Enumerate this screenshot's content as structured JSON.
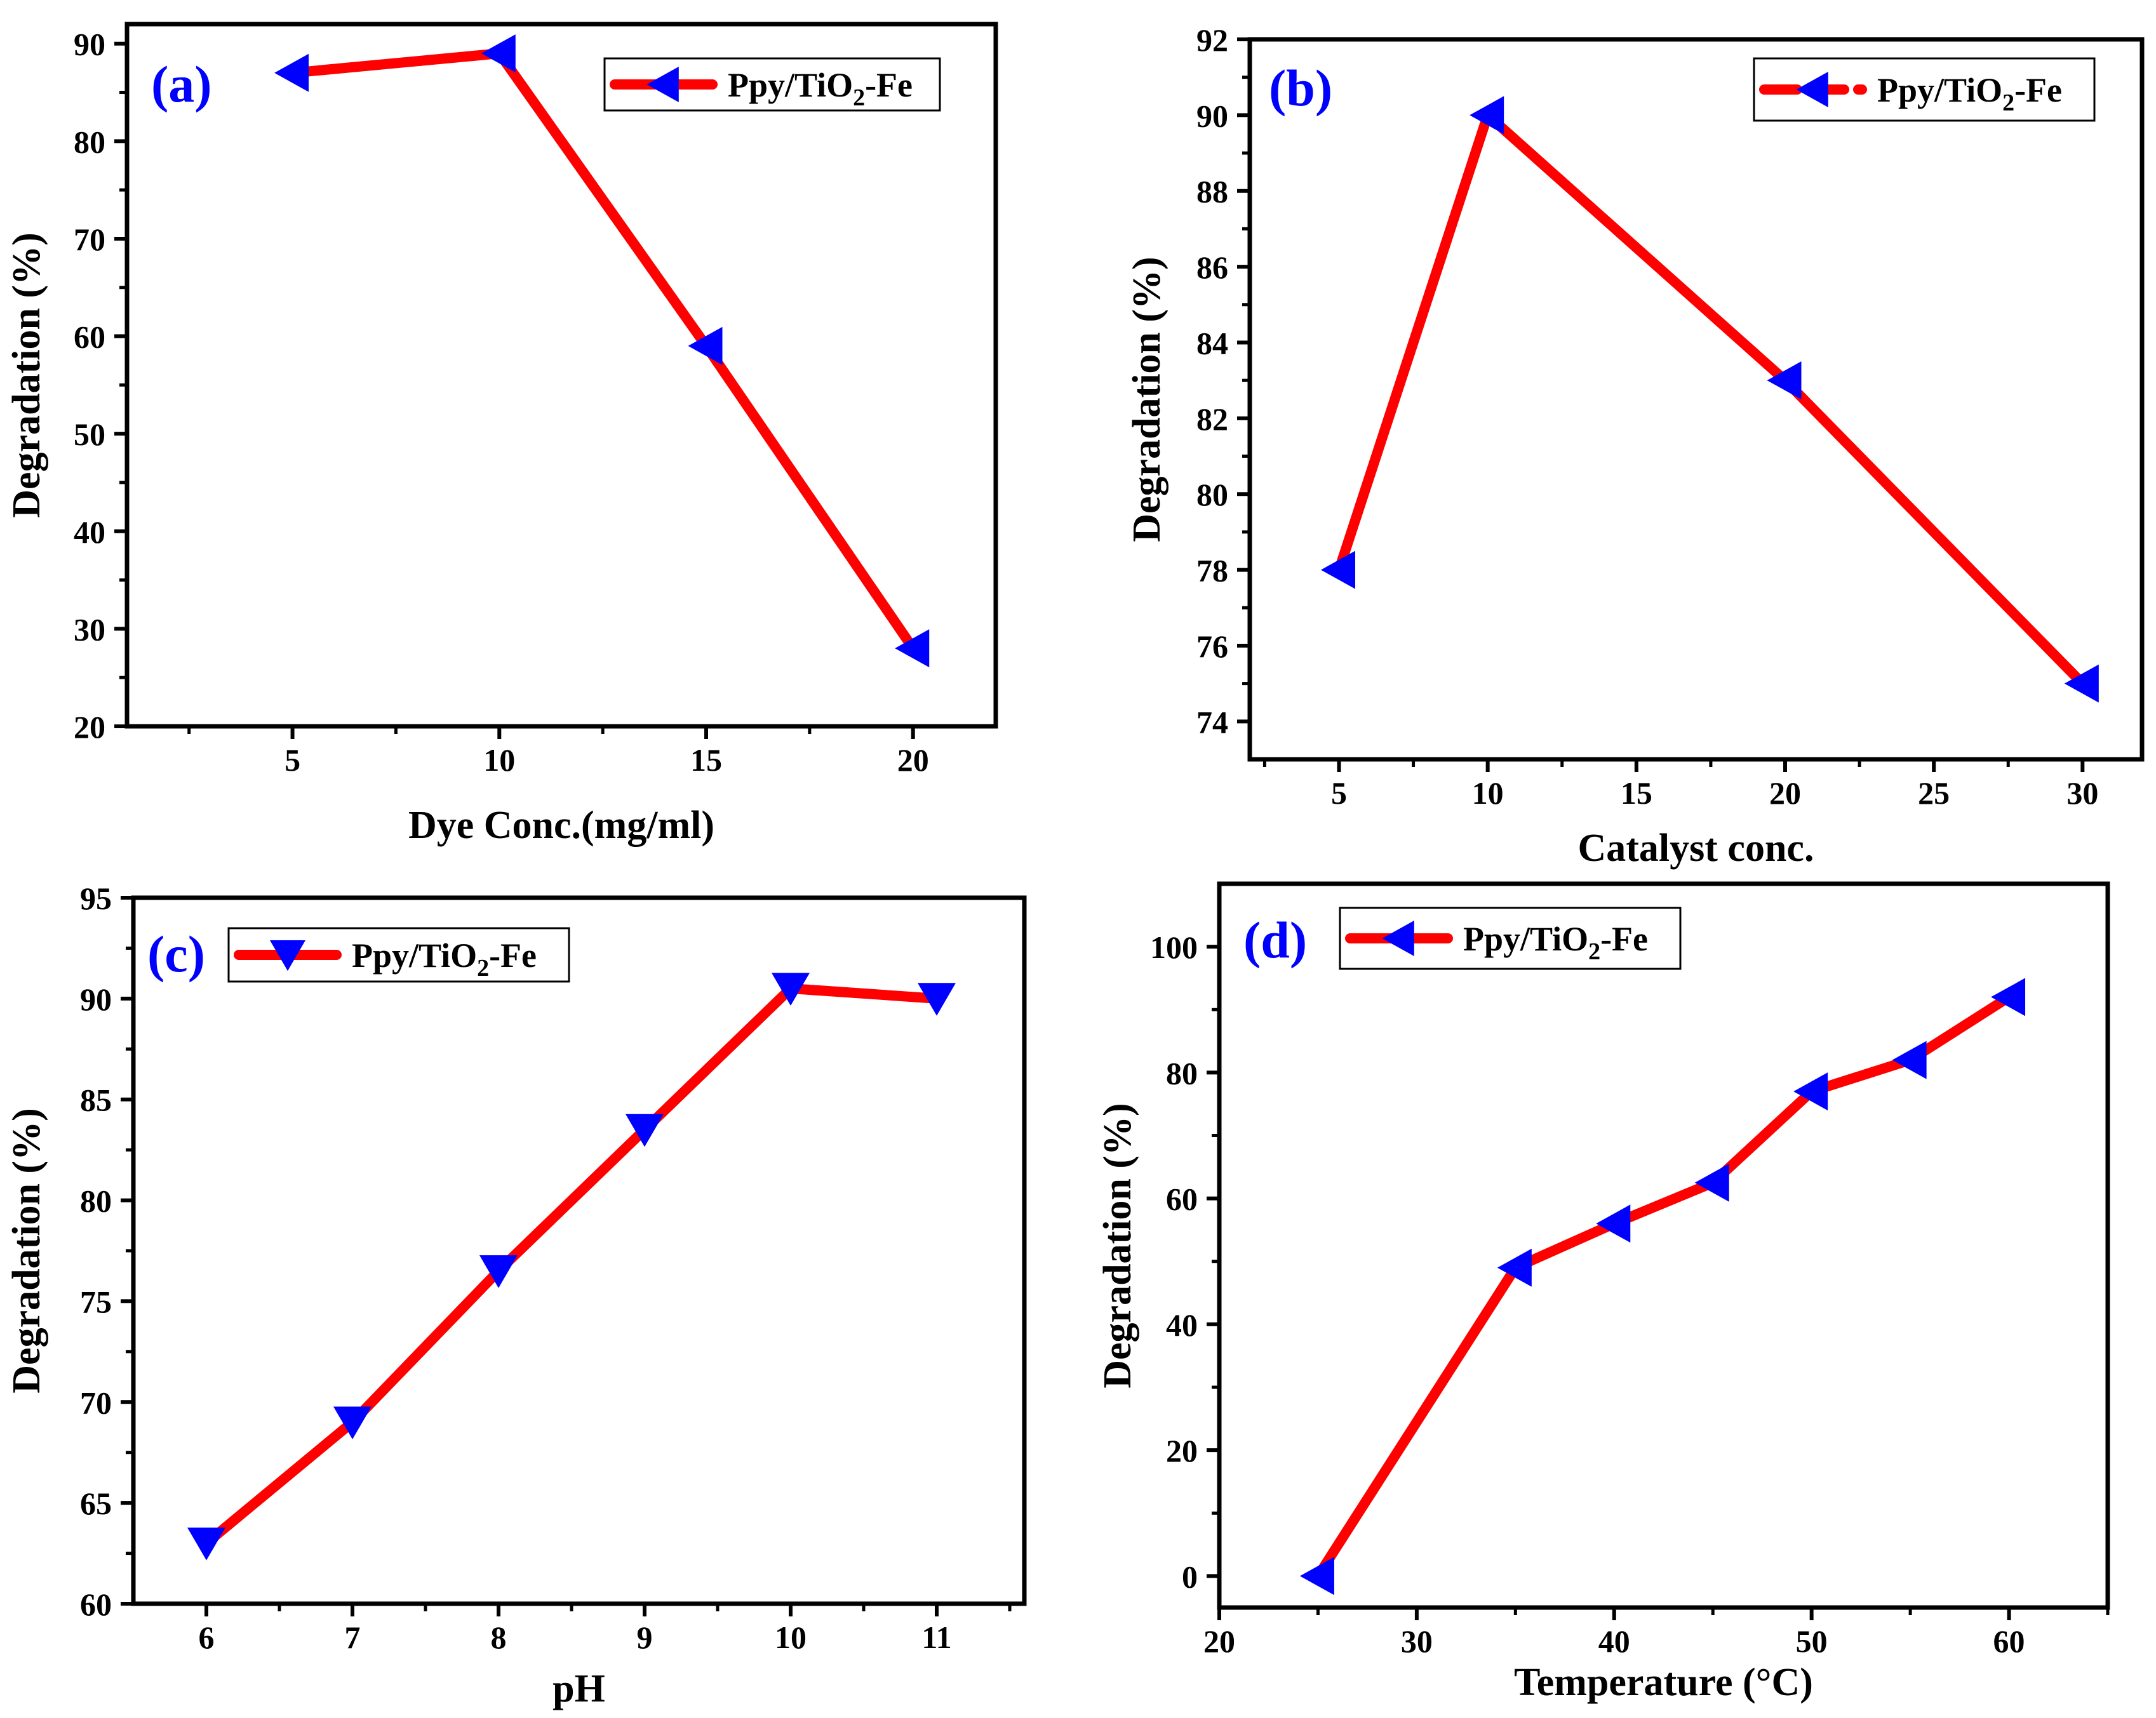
{
  "chart_data": [
    {
      "panel": "a",
      "panel_label": "(a)",
      "type": "line",
      "xlabel": "Dye Conc.(mg/ml)",
      "ylabel": "Degradation (%)",
      "xlim": [
        1,
        22
      ],
      "ylim": [
        20,
        92
      ],
      "xticks": [
        5,
        10,
        15,
        20
      ],
      "yticks": [
        20,
        30,
        40,
        50,
        60,
        70,
        80,
        90
      ],
      "line_style": "solid",
      "legend_position": "top-right",
      "series": [
        {
          "name": "Ppy/TiO2-Fe",
          "marker": "left-triangle",
          "x": [
            5,
            10,
            15,
            20
          ],
          "y": [
            87,
            89,
            59,
            28
          ]
        }
      ]
    },
    {
      "panel": "b",
      "panel_label": "(b)",
      "type": "line",
      "xlabel": "Catalyst conc.",
      "ylabel": "Degradation (%)",
      "xlim": [
        2,
        32
      ],
      "ylim": [
        73,
        92
      ],
      "xticks": [
        5,
        10,
        15,
        20,
        25,
        30
      ],
      "yticks": [
        74,
        76,
        78,
        80,
        82,
        84,
        86,
        88,
        90,
        92
      ],
      "line_style": "dashed",
      "legend_position": "top-right",
      "series": [
        {
          "name": "Ppy/TiO2-Fe",
          "marker": "left-triangle",
          "x": [
            5,
            10,
            20,
            30
          ],
          "y": [
            78,
            90,
            83,
            75
          ]
        }
      ]
    },
    {
      "panel": "c",
      "panel_label": "(c)",
      "type": "line",
      "xlabel": "pH",
      "ylabel": "Degradation (%)",
      "xlim": [
        5.5,
        11.6
      ],
      "ylim": [
        60,
        95
      ],
      "xticks": [
        6,
        7,
        8,
        9,
        10,
        11
      ],
      "yticks": [
        60,
        65,
        70,
        75,
        80,
        85,
        90,
        95
      ],
      "line_style": "solid",
      "legend_position": "top-left",
      "series": [
        {
          "name": "Ppy/TiO2-Fe",
          "marker": "down-triangle",
          "x": [
            6,
            7,
            8,
            9,
            10,
            11
          ],
          "y": [
            63,
            69,
            76.5,
            83.5,
            90.5,
            90
          ]
        }
      ]
    },
    {
      "panel": "d",
      "panel_label": "(d)",
      "type": "line",
      "xlabel": "Temperature (°C)",
      "ylabel": "Degradation (%)",
      "xlim": [
        20,
        65
      ],
      "ylim": [
        -5,
        110
      ],
      "xticks": [
        20,
        30,
        40,
        50,
        60
      ],
      "yticks": [
        0,
        20,
        40,
        60,
        80,
        100
      ],
      "line_style": "solid",
      "legend_position": "top-left",
      "series": [
        {
          "name": "Ppy/TiO2-Fe",
          "marker": "left-triangle",
          "x": [
            25,
            35,
            40,
            45,
            50,
            55,
            60
          ],
          "y": [
            0,
            49,
            56,
            62.5,
            77,
            82,
            92
          ]
        }
      ]
    }
  ],
  "style": {
    "line_color": "#ff0000",
    "marker_color": "#0000ff",
    "label_color": "#0000ff",
    "axis_color": "#000000"
  },
  "legend_text": {
    "prefix": "Ppy/TiO",
    "subscript": "2",
    "suffix": "-Fe"
  }
}
